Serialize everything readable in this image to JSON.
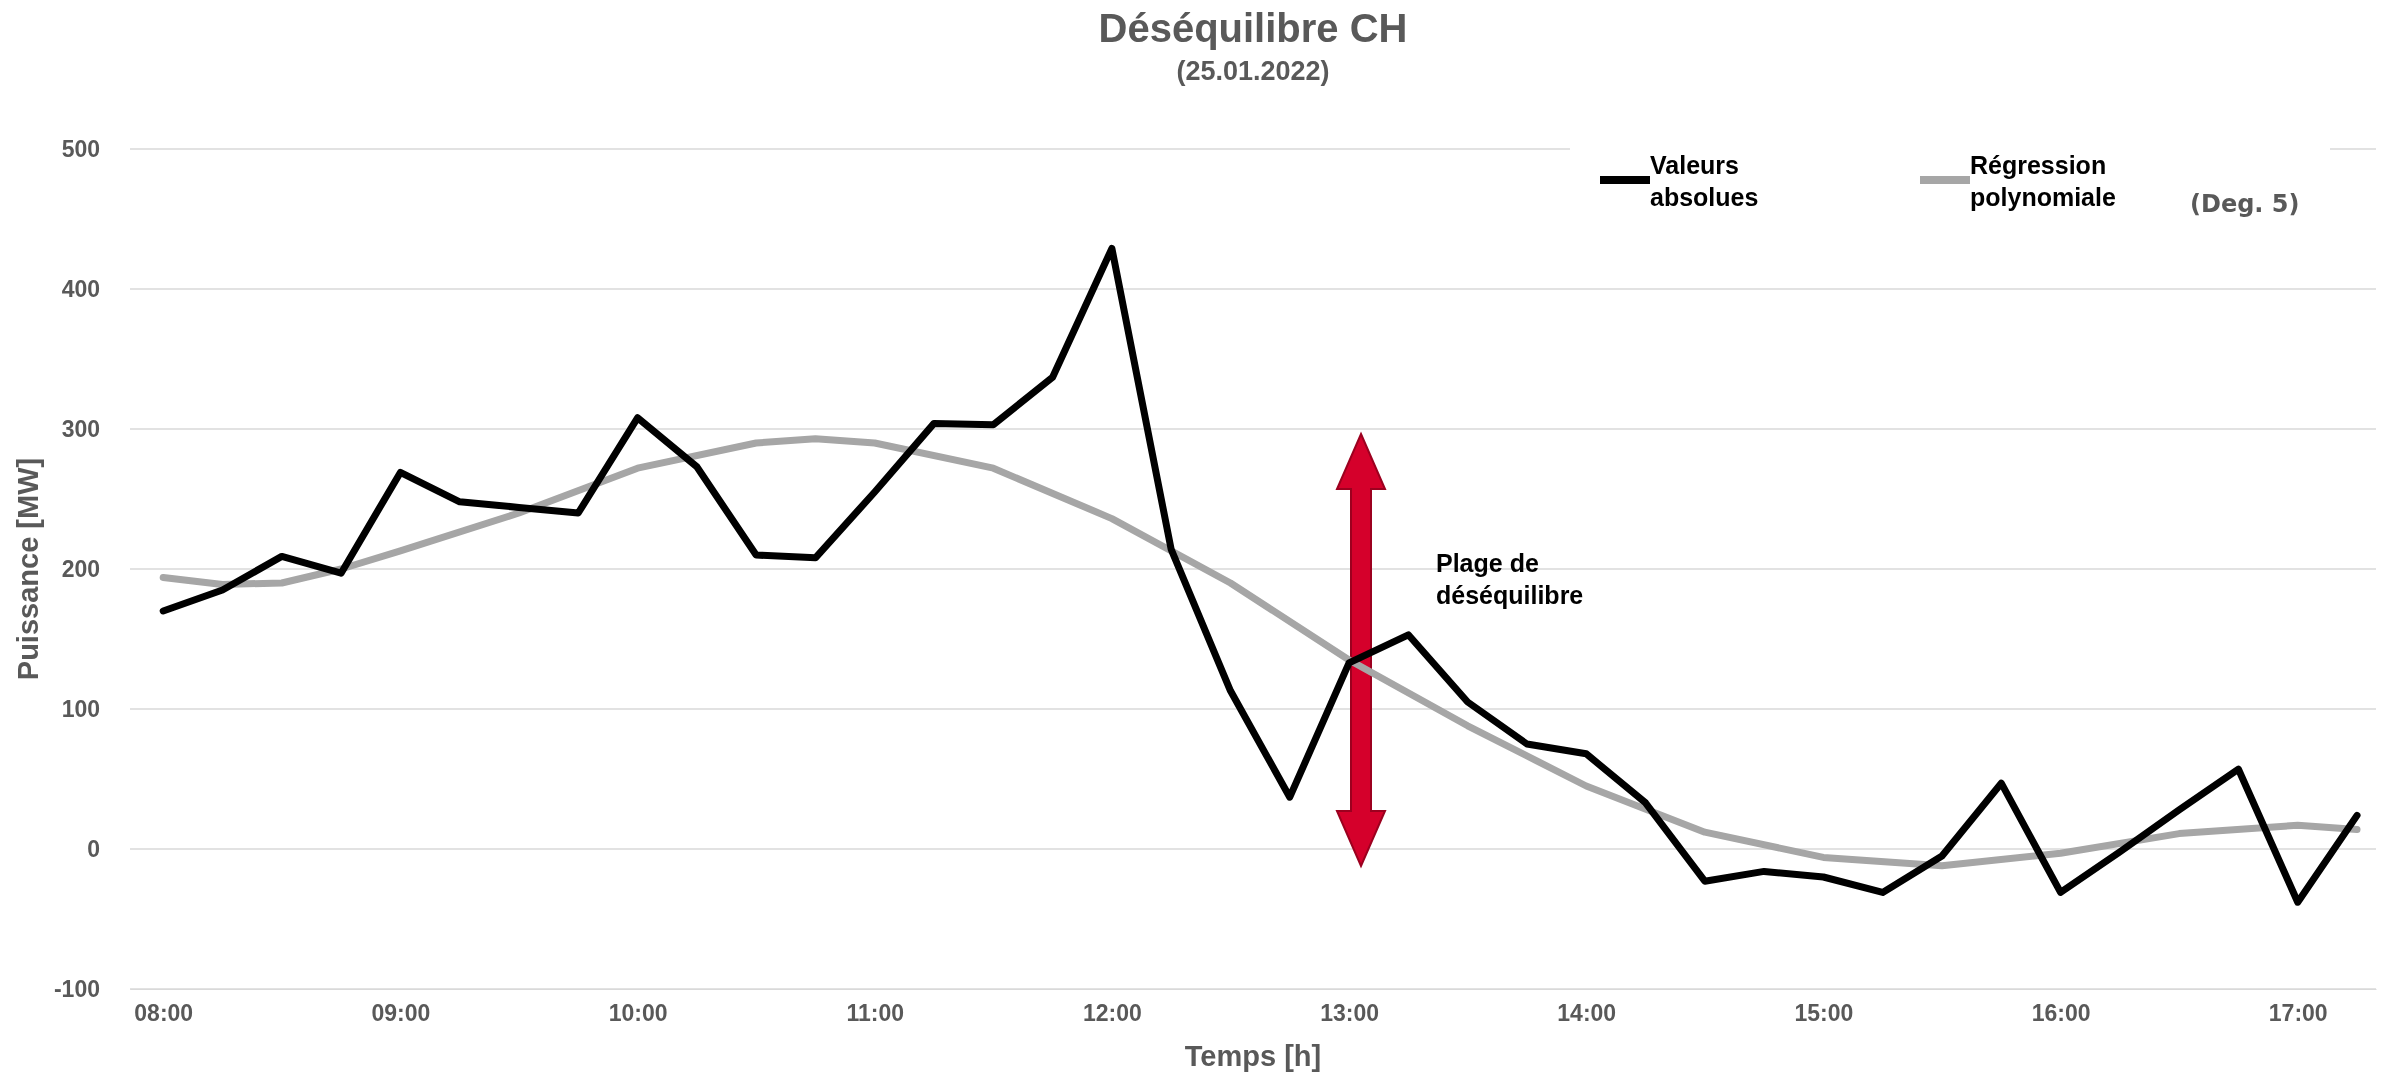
{
  "chart_data": {
    "type": "line",
    "title": "Déséquilibre CH",
    "subtitle": "(25.01.2022)",
    "xlabel": "Temps [h]",
    "ylabel": "Puissance [MW]",
    "xlim": [
      7.86,
      17.33
    ],
    "ylim": [
      -100,
      500
    ],
    "xticks": [
      {
        "value": 8,
        "label": "08:00"
      },
      {
        "value": 9,
        "label": "09:00"
      },
      {
        "value": 10,
        "label": "10:00"
      },
      {
        "value": 11,
        "label": "11:00"
      },
      {
        "value": 12,
        "label": "12:00"
      },
      {
        "value": 13,
        "label": "13:00"
      },
      {
        "value": 14,
        "label": "14:00"
      },
      {
        "value": 15,
        "label": "15:00"
      },
      {
        "value": 16,
        "label": "16:00"
      },
      {
        "value": 17,
        "label": "17:00"
      }
    ],
    "yticks": [
      -100,
      0,
      100,
      200,
      300,
      400,
      500
    ],
    "grid": "y",
    "legend": "top right",
    "marker": "none",
    "line_style": "solid",
    "series": [
      {
        "name": "Valeurs absolues",
        "color": "#000000",
        "x": [
          8,
          8.25,
          8.5,
          8.75,
          9,
          9.25,
          9.5,
          9.75,
          10,
          10.25,
          10.5,
          10.75,
          11,
          11.25,
          11.5,
          11.75,
          12,
          12.25,
          12.5,
          12.75,
          13,
          13.25,
          13.5,
          13.75,
          14,
          14.25,
          14.5,
          14.75,
          15,
          15.25,
          15.5,
          15.75,
          16,
          16.25,
          16.5,
          16.75,
          17,
          17.25
        ],
        "values": [
          170,
          185,
          209,
          197,
          269,
          248,
          244,
          240,
          308,
          273,
          210,
          208,
          255,
          304,
          303,
          337,
          429,
          214,
          113,
          37,
          133,
          153,
          105,
          75,
          68,
          33,
          -23,
          -16,
          -20,
          -31,
          -5,
          47,
          -31,
          -2,
          28,
          57,
          -38,
          24
        ]
      },
      {
        "name": "Régression polynomiale",
        "color": "#a6a6a6",
        "x": [
          8,
          8.25,
          8.5,
          8.75,
          9,
          9.5,
          10,
          10.5,
          10.75,
          11,
          11.5,
          12,
          12.5,
          13,
          13.5,
          14,
          14.5,
          15,
          15.5,
          16,
          16.5,
          17,
          17.25
        ],
        "values": [
          194,
          189,
          190,
          200,
          213,
          240,
          272,
          290,
          293,
          290,
          272,
          236,
          190,
          135,
          88,
          45,
          12,
          -6,
          -12,
          -3,
          11,
          17,
          14
        ]
      }
    ],
    "annotations": [
      "Plage de déséquilibre",
      "(Deg. 5)"
    ]
  }
}
